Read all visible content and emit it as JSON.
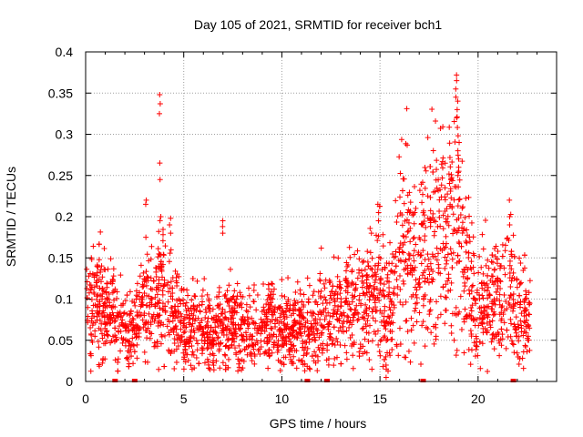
{
  "chart_data": {
    "type": "scatter",
    "title": "Day 105 of 2021, SRMTID for receiver bch1",
    "xlabel": "GPS time / hours",
    "ylabel": "SRMTID / TECUs",
    "xlim": [
      0,
      24
    ],
    "ylim": [
      0,
      0.4
    ],
    "x_ticks": [
      0,
      5,
      10,
      15,
      20
    ],
    "x_tick_labels": [
      "0",
      "5",
      "10",
      "15",
      "20"
    ],
    "y_ticks": [
      0,
      0.05,
      0.1,
      0.15,
      0.2,
      0.25,
      0.3,
      0.35,
      0.4
    ],
    "y_tick_labels": [
      "0",
      "0.05",
      "0.1",
      "0.15",
      "0.2",
      "0.25",
      "0.3",
      "0.35",
      "0.4"
    ],
    "grid": true,
    "marker": "+",
    "color": "#ff0000",
    "series": [
      {
        "name": "SRMTID",
        "envelope_hours": [
          0.0,
          0.5,
          1.0,
          1.5,
          2.0,
          2.5,
          3.0,
          3.5,
          4.0,
          4.5,
          5.0,
          5.5,
          6.0,
          6.5,
          7.0,
          7.5,
          8.0,
          8.5,
          9.0,
          9.5,
          10.0,
          10.5,
          11.0,
          11.5,
          12.0,
          12.5,
          13.0,
          13.5,
          14.0,
          14.5,
          15.0,
          15.5,
          16.0,
          16.5,
          17.0,
          17.5,
          18.0,
          18.5,
          19.0,
          19.5,
          20.0,
          20.5,
          21.0,
          21.5,
          22.0,
          22.5
        ],
        "envelope_mean": [
          0.08,
          0.095,
          0.09,
          0.085,
          0.06,
          0.07,
          0.09,
          0.1,
          0.11,
          0.08,
          0.065,
          0.065,
          0.06,
          0.06,
          0.065,
          0.07,
          0.06,
          0.06,
          0.065,
          0.07,
          0.065,
          0.06,
          0.07,
          0.055,
          0.08,
          0.08,
          0.09,
          0.09,
          0.1,
          0.1,
          0.12,
          0.08,
          0.155,
          0.16,
          0.14,
          0.17,
          0.19,
          0.17,
          0.2,
          0.11,
          0.1,
          0.1,
          0.1,
          0.12,
          0.09,
          0.08
        ],
        "spikes": [
          {
            "x": 3.8,
            "y": [
              0.348,
              0.337,
              0.325,
              0.265,
              0.245,
              0.2
            ]
          },
          {
            "x": 3.1,
            "y": [
              0.22,
              0.215,
              0.175
            ]
          },
          {
            "x": 4.3,
            "y": [
              0.198,
              0.19,
              0.18
            ]
          },
          {
            "x": 7.0,
            "y": [
              0.195,
              0.188,
              0.18
            ]
          },
          {
            "x": 14.9,
            "y": [
              0.215,
              0.205,
              0.195
            ]
          },
          {
            "x": 15.3,
            "y": [
              0.03,
              0.015,
              0.005
            ]
          },
          {
            "x": 18.9,
            "y": [
              0.372,
              0.365,
              0.355,
              0.345,
              0.33,
              0.32
            ]
          },
          {
            "x": 19.0,
            "y": [
              0.29,
              0.28,
              0.27,
              0.26,
              0.25
            ]
          },
          {
            "x": 21.6,
            "y": [
              0.22,
              0.2,
              0.19
            ]
          },
          {
            "x": 17.3,
            "y": [
              0.043
            ]
          }
        ],
        "markers_at_zero": [
          1.5,
          2.5,
          11.3,
          12.3,
          17.2,
          21.8
        ]
      }
    ]
  }
}
